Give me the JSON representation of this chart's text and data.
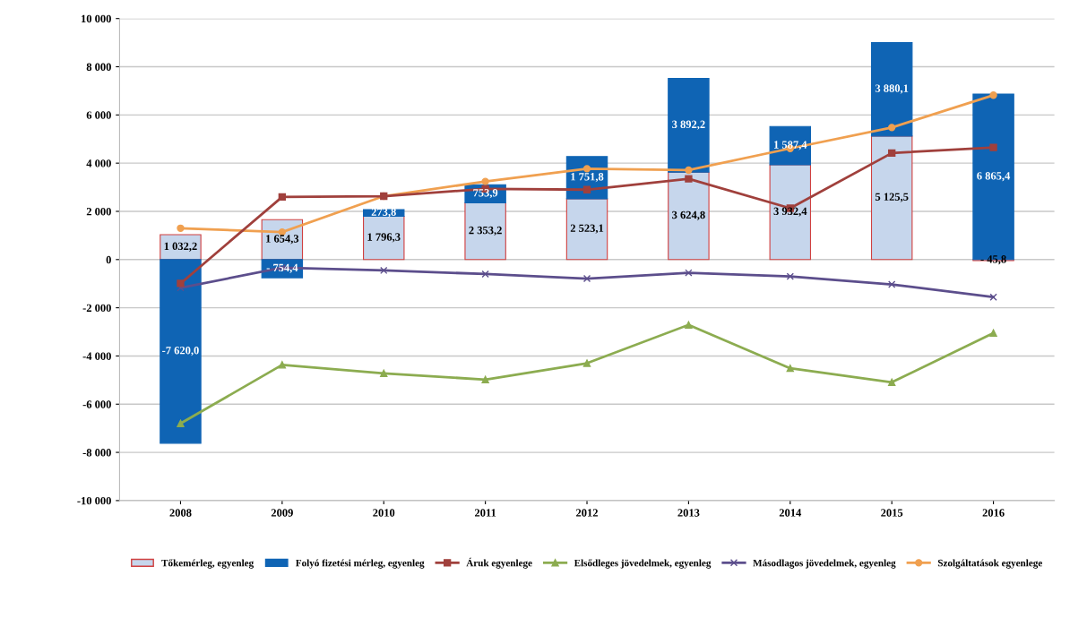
{
  "chart_data": {
    "type": "bar",
    "stacked": true,
    "categories": [
      "2008",
      "2009",
      "2010",
      "2011",
      "2012",
      "2013",
      "2014",
      "2015",
      "2016"
    ],
    "ylim": [
      -10000,
      10000
    ],
    "yticks": [
      {
        "value": -10000,
        "label": "-10 000"
      },
      {
        "value": -8000,
        "label": "-8 000"
      },
      {
        "value": -6000,
        "label": "-6 000"
      },
      {
        "value": -4000,
        "label": "-4 000"
      },
      {
        "value": -2000,
        "label": "-2 000"
      },
      0,
      {
        "value": 2000,
        "label": "2 000"
      },
      {
        "value": 4000,
        "label": "4 000"
      },
      {
        "value": 6000,
        "label": "6 000"
      },
      {
        "value": 8000,
        "label": "8 000"
      },
      {
        "value": 10000,
        "label": "10 000"
      }
    ],
    "grid": "y",
    "legend": "bottom",
    "series": [
      {
        "name": "Tőkemérleg, egyenleg",
        "color": "#c6d6ec",
        "values": [
          1032.2,
          1654.3,
          1796.3,
          2353.2,
          2523.1,
          3624.8,
          3932.4,
          5125.5,
          -45.8
        ],
        "value_labels": [
          "1 032,2",
          "1 654,3",
          "1 796,3",
          "2 353,2",
          "2 523,1",
          "3 624,8",
          "3 932,4",
          "5 125,5",
          "- 45,8"
        ]
      },
      {
        "name": "Folyó fizetési mérleg, egyenleg",
        "color": "#0f64b4",
        "values": [
          -7620.0,
          -754.4,
          273.8,
          753.9,
          1751.8,
          3892.2,
          1587.4,
          3880.1,
          6865.4
        ],
        "value_labels": [
          "-7 620,0",
          "- 754,4",
          "273,8",
          "753,9",
          "1 751,8",
          "3 892,2",
          "1 587,4",
          "3 880,1",
          "6 865,4"
        ]
      },
      {
        "name": "Áruk egyenlege",
        "type": "line",
        "color": "#a0403c",
        "marker": "square",
        "values": [
          -990,
          2600,
          2630,
          2930,
          2900,
          3350,
          2130,
          4420,
          4650
        ]
      },
      {
        "name": "Elsődleges jövedelmek, egyenleg",
        "type": "line",
        "color": "#8cac50",
        "marker": "triangle",
        "values": [
          -6800,
          -4370,
          -4720,
          -4980,
          -4300,
          -2710,
          -4510,
          -5090,
          -3050
        ]
      },
      {
        "name": "Másodlagos jövedelmek, egyenleg",
        "type": "line",
        "color": "#5c4e8c",
        "marker": "cross",
        "values": [
          -1170,
          -340,
          -450,
          -600,
          -790,
          -550,
          -700,
          -1030,
          -1560
        ]
      },
      {
        "name": "Szolgáltatások egyenlege",
        "type": "line",
        "color": "#f0a050",
        "marker": "circle",
        "values": [
          1300,
          1140,
          2630,
          3240,
          3770,
          3710,
          4610,
          5480,
          6820
        ]
      }
    ]
  }
}
